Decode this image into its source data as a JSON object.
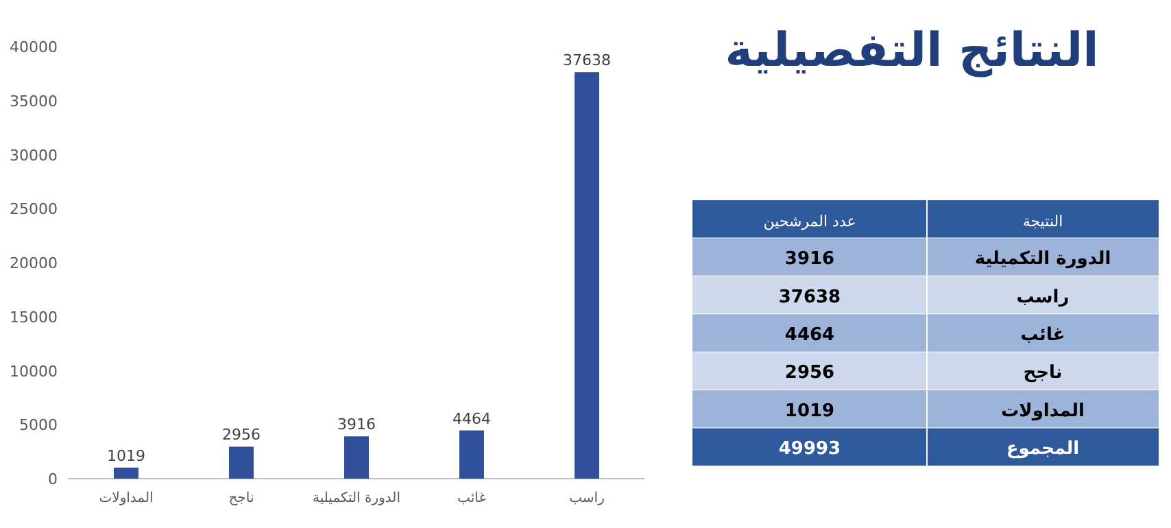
{
  "chart_data": {
    "type": "bar",
    "title": "النتائج التفصيلية",
    "categories": [
      "المداولات",
      "ناجح",
      "الدورة التكميلية",
      "غائب",
      "راسب"
    ],
    "values": [
      1019,
      2956,
      3916,
      4464,
      37638
    ],
    "color": "#2f4f9a",
    "ylim": [
      0,
      40000
    ],
    "yticks": [
      0,
      5000,
      10000,
      15000,
      20000,
      25000,
      30000,
      35000,
      40000
    ],
    "data_labels": true,
    "annotations": [
      "النتيجة",
      "عدد المرشحين",
      "الدورة التكميلية",
      "3916",
      "راسب",
      "37638",
      "غائب",
      "4464",
      "ناجح",
      "2956",
      "المداولات",
      "1019",
      "المجموع",
      "49993"
    ]
  }
}
